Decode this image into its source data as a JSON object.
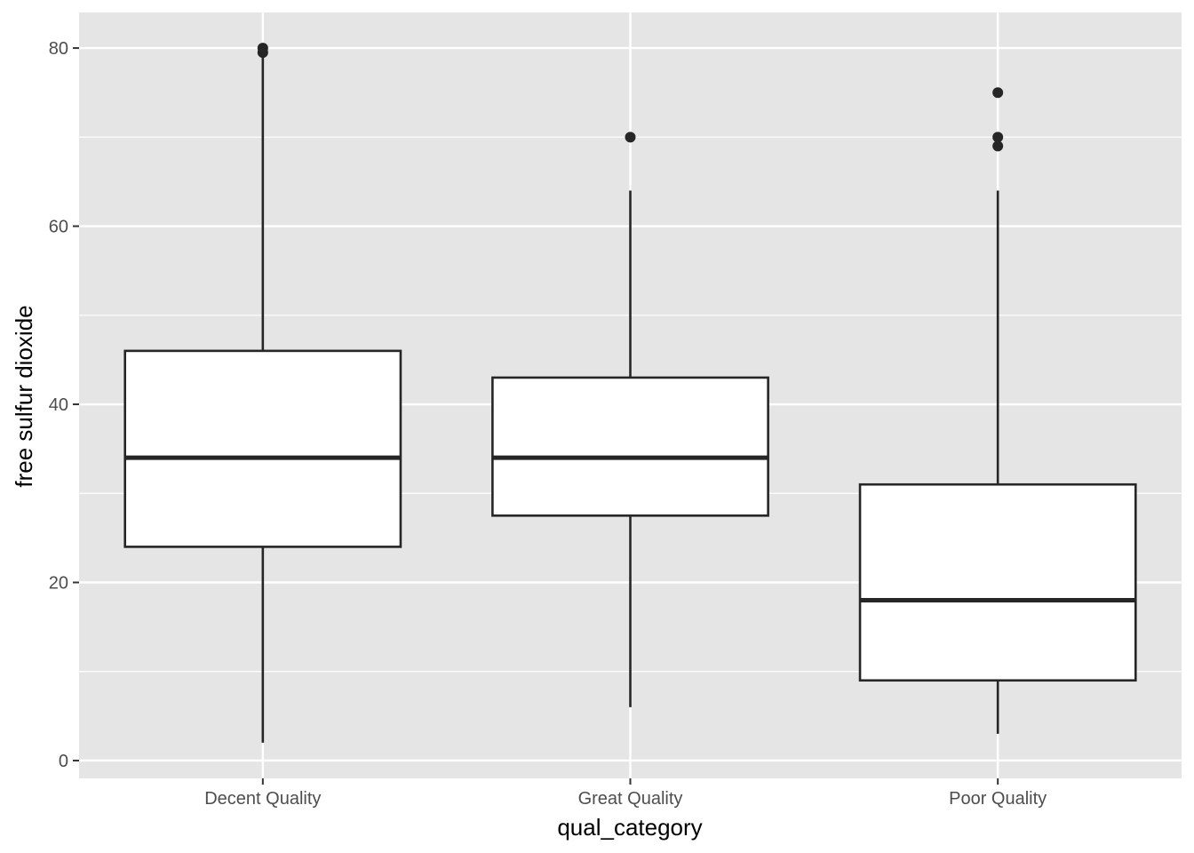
{
  "chart_data": {
    "type": "boxplot",
    "title": "",
    "xlabel": "qual_category",
    "ylabel": "free sulfur dioxide",
    "ylim": [
      -2,
      84
    ],
    "y_ticks": [
      0,
      20,
      40,
      60,
      80
    ],
    "y_tick_labels": [
      "0",
      "20",
      "40",
      "60",
      "80"
    ],
    "y_minor_gridlines": [
      10,
      30,
      50,
      70
    ],
    "grid": true,
    "colors": {
      "panel_background": "#e5e5e5",
      "grid": "#ffffff",
      "box_fill": "#ffffff",
      "box_line": "#262626",
      "tick_text": "#4d4d4d",
      "axis_title_text": "#000000"
    },
    "categories": [
      "Decent Quality",
      "Great Quality",
      "Poor Quality"
    ],
    "boxes": [
      {
        "category": "Decent Quality",
        "whisker_low": 2,
        "q1": 24,
        "median": 34,
        "q3": 46,
        "whisker_high": 79,
        "outliers": [
          79.5,
          80
        ]
      },
      {
        "category": "Great Quality",
        "whisker_low": 6,
        "q1": 27.5,
        "median": 34,
        "q3": 43,
        "whisker_high": 64,
        "outliers": [
          70
        ]
      },
      {
        "category": "Poor Quality",
        "whisker_low": 3,
        "q1": 9,
        "median": 18,
        "q3": 31,
        "whisker_high": 64,
        "outliers": [
          69,
          70,
          75
        ]
      }
    ]
  }
}
